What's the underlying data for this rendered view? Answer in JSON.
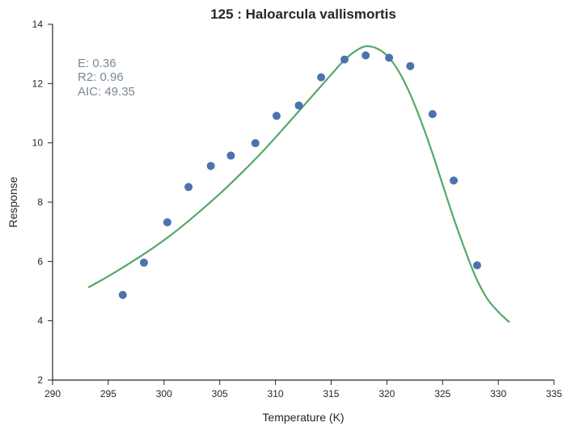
{
  "chart_data": {
    "type": "scatter",
    "title": "125 : Haloarcula vallismortis",
    "xlabel": "Temperature (K)",
    "ylabel": "Response",
    "xlim": [
      290,
      335
    ],
    "ylim": [
      2,
      14
    ],
    "xticks": [
      290,
      295,
      300,
      305,
      310,
      315,
      320,
      325,
      330,
      335
    ],
    "yticks": [
      2,
      4,
      6,
      8,
      10,
      12,
      14
    ],
    "grid": false,
    "annotations": [
      "E:  0.36",
      "R2:  0.96",
      "AIC: 49.35"
    ],
    "annotation_color": "#778899",
    "series": [
      {
        "kind": "points",
        "color": "#4c72b0",
        "x": [
          296.3,
          298.2,
          300.3,
          302.2,
          304.2,
          306.0,
          308.2,
          310.1,
          312.1,
          314.1,
          316.2,
          318.1,
          320.2,
          322.1,
          324.1,
          326.0,
          328.1
        ],
        "y": [
          4.87,
          5.96,
          7.32,
          8.51,
          9.22,
          9.57,
          9.99,
          10.91,
          11.26,
          12.21,
          12.81,
          12.95,
          12.87,
          12.59,
          10.97,
          8.73,
          5.87
        ]
      },
      {
        "kind": "line",
        "color": "#55a868",
        "x": [
          293.2,
          295,
          297,
          299,
          301,
          303,
          305,
          307,
          309,
          311,
          313,
          315,
          316,
          317,
          318,
          319,
          320,
          321,
          322,
          323,
          324,
          325,
          326,
          327,
          328,
          329,
          330,
          331
        ],
        "y": [
          5.12,
          5.5,
          5.96,
          6.45,
          7.0,
          7.62,
          8.28,
          9.0,
          9.77,
          10.6,
          11.45,
          12.3,
          12.72,
          13.05,
          13.25,
          13.2,
          12.95,
          12.45,
          11.72,
          10.8,
          9.75,
          8.6,
          7.45,
          6.4,
          5.45,
          4.75,
          4.3,
          3.95
        ]
      }
    ]
  }
}
